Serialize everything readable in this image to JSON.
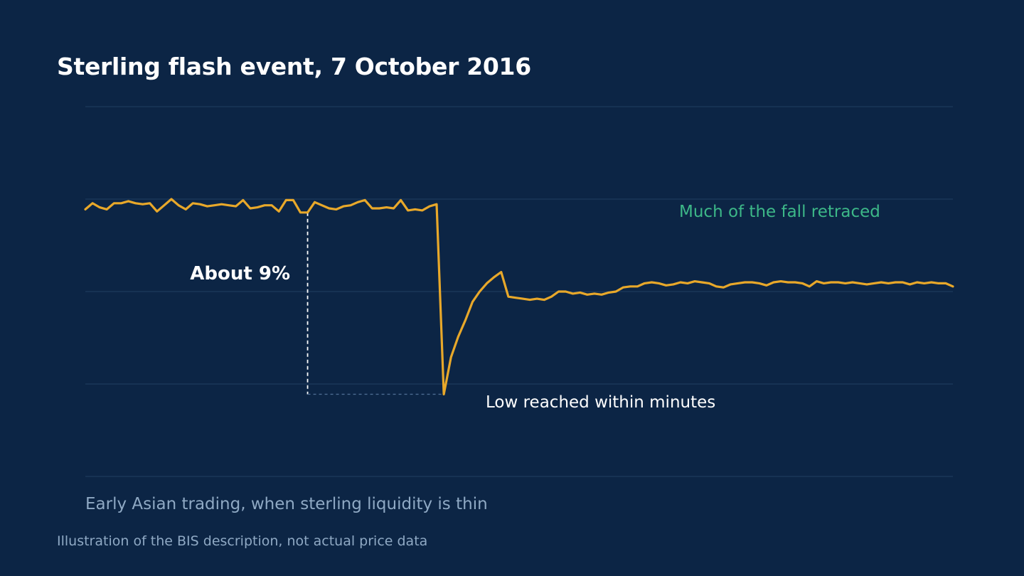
{
  "chart_data": {
    "type": "line",
    "title": "Sterling flash event, 7 October 2016",
    "subtitle": "",
    "xlabel": "",
    "ylabel": "",
    "grid": true,
    "ylim": [
      -13,
      5
    ],
    "gridlines": [
      5,
      0.5,
      -4,
      -8.5,
      -13
    ],
    "series": [
      {
        "x": [
          0,
          1,
          2,
          3,
          4,
          5,
          6,
          7,
          8,
          9,
          10,
          11,
          12,
          13,
          14,
          15,
          16,
          17,
          18,
          19,
          20,
          21,
          22,
          23,
          24,
          25,
          26,
          27,
          28,
          29,
          30,
          31,
          32,
          33,
          34,
          35,
          36,
          37,
          38,
          39,
          40,
          41,
          42,
          43,
          44,
          45,
          46,
          47,
          48,
          49,
          50,
          51,
          52,
          53,
          54,
          55,
          56,
          57,
          58,
          59,
          60,
          61,
          62,
          63,
          64,
          65,
          66,
          67,
          68,
          69,
          70,
          71,
          72,
          73,
          74,
          75,
          76,
          77,
          78,
          79,
          80,
          81,
          82,
          83,
          84,
          85,
          86,
          87,
          88,
          89,
          90,
          91,
          92,
          93,
          94,
          95,
          96,
          97,
          98,
          99,
          100,
          101,
          102,
          103,
          104,
          105,
          106,
          107,
          108,
          109,
          110,
          111,
          112,
          113,
          114,
          115,
          116,
          117,
          118,
          119,
          120,
          121
        ],
        "values": [
          0.0,
          0.3,
          0.1,
          0.0,
          0.3,
          0.3,
          0.4,
          0.3,
          0.25,
          0.3,
          -0.1,
          0.2,
          0.5,
          0.2,
          0.0,
          0.3,
          0.25,
          0.15,
          0.2,
          0.25,
          0.2,
          0.15,
          0.45,
          0.05,
          0.1,
          0.2,
          0.2,
          -0.1,
          0.45,
          0.45,
          -0.15,
          -0.15,
          0.35,
          0.2,
          0.05,
          0.0,
          0.15,
          0.2,
          0.35,
          0.45,
          0.05,
          0.05,
          0.1,
          0.05,
          0.45,
          -0.05,
          0.0,
          -0.05,
          0.15,
          0.25,
          -9.0,
          -7.2,
          -6.2,
          -5.4,
          -4.5,
          -4.0,
          -3.6,
          -3.3,
          -3.05,
          -4.25,
          -4.3,
          -4.35,
          -4.4,
          -4.35,
          -4.4,
          -4.25,
          -4.0,
          -4.0,
          -4.1,
          -4.05,
          -4.15,
          -4.1,
          -4.15,
          -4.05,
          -4.0,
          -3.8,
          -3.75,
          -3.75,
          -3.6,
          -3.55,
          -3.6,
          -3.7,
          -3.65,
          -3.55,
          -3.6,
          -3.5,
          -3.55,
          -3.6,
          -3.75,
          -3.8,
          -3.65,
          -3.6,
          -3.55,
          -3.55,
          -3.6,
          -3.7,
          -3.55,
          -3.5,
          -3.55,
          -3.55,
          -3.6,
          -3.75,
          -3.5,
          -3.6,
          -3.55,
          -3.55,
          -3.6,
          -3.55,
          -3.6,
          -3.65,
          -3.6,
          -3.55,
          -3.6,
          -3.55,
          -3.55,
          -3.65,
          -3.55,
          -3.6,
          -3.55,
          -3.6,
          -3.6,
          -3.75
        ]
      }
    ],
    "annotations": {
      "drop_label": "About 9%",
      "low_label": "Low reached within minutes",
      "retrace_label": "Much of the fall retraced"
    },
    "caption": "Early Asian trading, when sterling liquidity is thin",
    "footnote": "Illustration of the BIS description, not actual price data"
  },
  "colors": {
    "background": "#0c2545",
    "line": "#e8a82a",
    "retrace": "#3db888",
    "gridline": "#1d3a5c",
    "muted_text": "#8fa9c4"
  }
}
